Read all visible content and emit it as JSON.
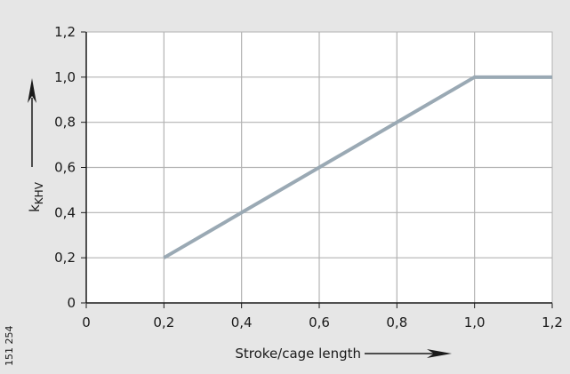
{
  "chart_data": {
    "type": "line",
    "title": "",
    "xlabel": "Stroke/cage length",
    "ylabel": "k",
    "ylabel_subscript": "KHV",
    "xlim": [
      0,
      1.2
    ],
    "ylim": [
      0,
      1.2
    ],
    "grid": true,
    "x_ticks": [
      "0",
      "0,2",
      "0,4",
      "0,6",
      "0,8",
      "1,0",
      "1,2"
    ],
    "y_ticks": [
      "0",
      "0,2",
      "0,4",
      "0,6",
      "0,8",
      "1,0",
      "1,2"
    ],
    "series": [
      {
        "x": [
          0.2,
          1.0,
          1.2
        ],
        "y": [
          0.2,
          1.0,
          1.0
        ]
      }
    ],
    "colors": {
      "background": "#e6e6e6",
      "plot_area": "#ffffff",
      "grid": "#b3b3b3",
      "line": "#9aa9b4",
      "text": "#1a1a1a"
    }
  },
  "figure_number": "151 254"
}
